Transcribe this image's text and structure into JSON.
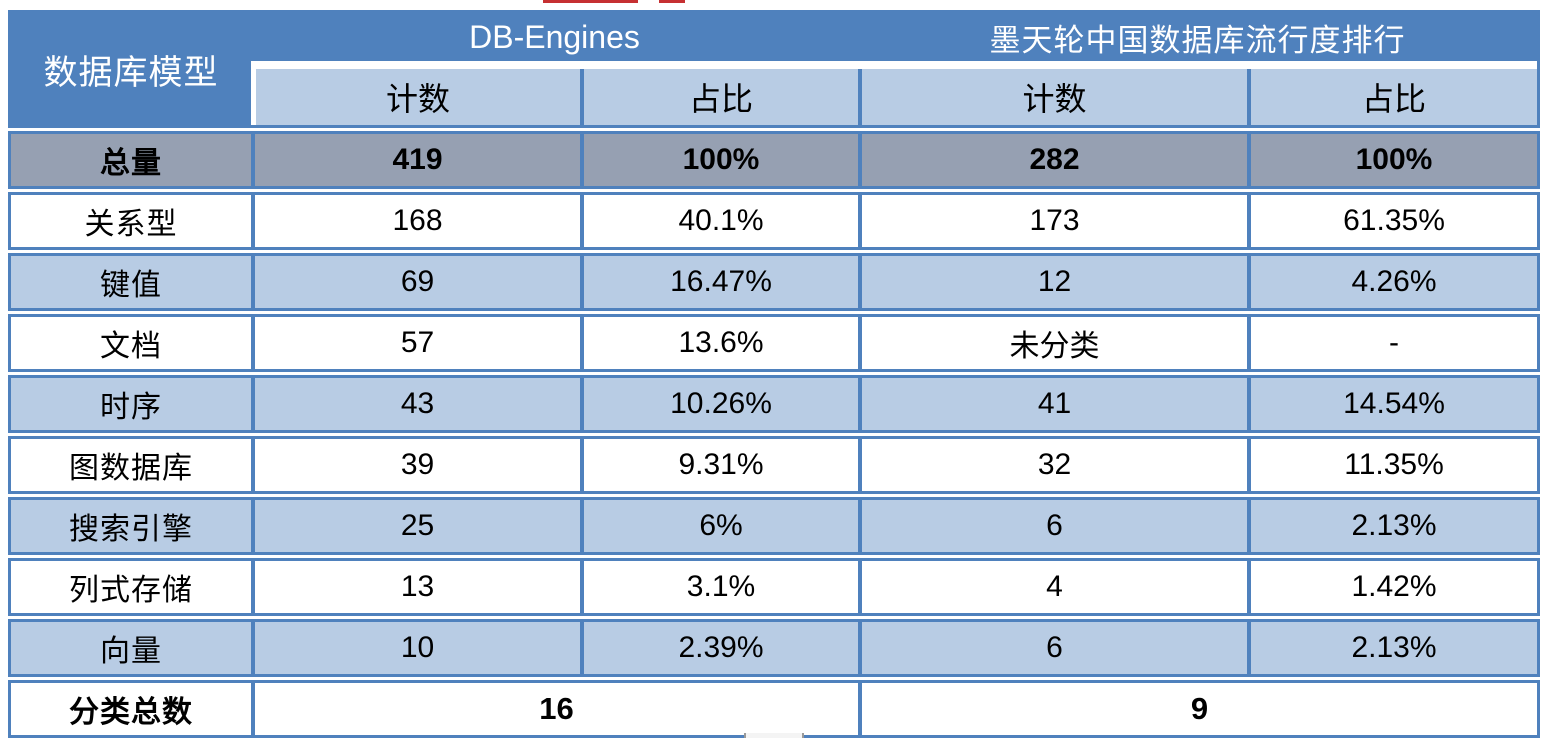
{
  "colors": {
    "header_blue": "#4F81BD",
    "light_blue": "#B8CCE4",
    "total_row_gray": "#96A0B2",
    "border_blue": "#4F81BD",
    "text_black": "#000000",
    "header_text_white": "#FFFFFF",
    "artifact_red": "#C63032"
  },
  "table": {
    "corner_header": "数据库模型",
    "groups": [
      {
        "label": "DB-Engines"
      },
      {
        "label": "墨天轮中国数据库流行度排行"
      }
    ],
    "sub_headers": [
      "计数",
      "占比",
      "计数",
      "占比"
    ],
    "rows": [
      {
        "label": "总量",
        "values": [
          "419",
          "100%",
          "282",
          "100%"
        ],
        "variant": "total"
      },
      {
        "label": "关系型",
        "values": [
          "168",
          "40.1%",
          "173",
          "61.35%"
        ],
        "variant": "white"
      },
      {
        "label": "键值",
        "values": [
          "69",
          "16.47%",
          "12",
          "4.26%"
        ],
        "variant": "blue"
      },
      {
        "label": "文档",
        "values": [
          "57",
          "13.6%",
          "未分类",
          "-"
        ],
        "variant": "white"
      },
      {
        "label": "时序",
        "values": [
          "43",
          "10.26%",
          "41",
          "14.54%"
        ],
        "variant": "blue"
      },
      {
        "label": "图数据库",
        "values": [
          "39",
          "9.31%",
          "32",
          "11.35%"
        ],
        "variant": "white"
      },
      {
        "label": "搜索引擎",
        "values": [
          "25",
          "6%",
          "6",
          "2.13%"
        ],
        "variant": "blue"
      },
      {
        "label": "列式存储",
        "values": [
          "13",
          "3.1%",
          "4",
          "1.42%"
        ],
        "variant": "white"
      },
      {
        "label": "向量",
        "values": [
          "10",
          "2.39%",
          "6",
          "2.13%"
        ],
        "variant": "blue"
      }
    ],
    "footer": {
      "label": "分类总数",
      "left_total": "16",
      "right_total": "9"
    }
  },
  "chart_data": {
    "type": "table",
    "title": "数据库模型统计：DB-Engines 与 墨天轮中国数据库流行度排行",
    "columns": [
      "数据库模型",
      "DB-Engines 计数",
      "DB-Engines 占比",
      "墨天轮 计数",
      "墨天轮 占比"
    ],
    "rows": [
      [
        "总量",
        "419",
        "100%",
        "282",
        "100%"
      ],
      [
        "关系型",
        "168",
        "40.1%",
        "173",
        "61.35%"
      ],
      [
        "键值",
        "69",
        "16.47%",
        "12",
        "4.26%"
      ],
      [
        "文档",
        "57",
        "13.6%",
        "未分类",
        "-"
      ],
      [
        "时序",
        "43",
        "10.26%",
        "41",
        "14.54%"
      ],
      [
        "图数据库",
        "39",
        "9.31%",
        "32",
        "11.35%"
      ],
      [
        "搜索引擎",
        "25",
        "6%",
        "6",
        "2.13%"
      ],
      [
        "列式存储",
        "13",
        "3.1%",
        "4",
        "1.42%"
      ],
      [
        "向量",
        "10",
        "2.39%",
        "6",
        "2.13%"
      ],
      [
        "分类总数",
        "16",
        "",
        "9",
        ""
      ]
    ]
  }
}
